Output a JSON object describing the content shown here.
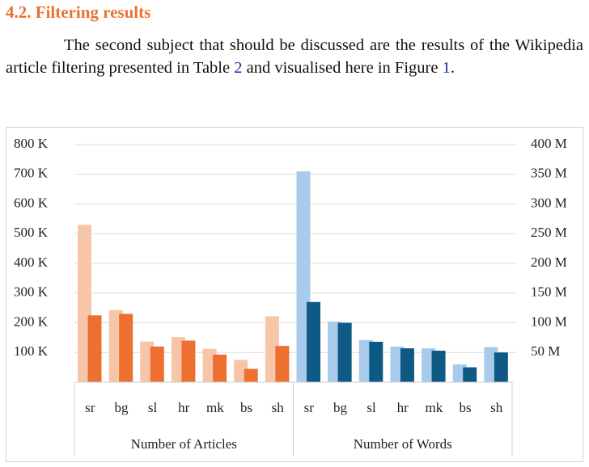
{
  "heading": "4.2. Filtering results",
  "paragraph": [
    "The second subject that should be discussed are the results of the Wikipedia article filtering presented in Table ",
    "2",
    " and visualised here in Figure ",
    "1",
    "."
  ],
  "chart_data": {
    "type": "bar",
    "ylim": [
      0,
      800000
    ],
    "yticks": [
      {
        "value": 100000,
        "label": "100 K"
      },
      {
        "value": 200000,
        "label": "200 K"
      },
      {
        "value": 300000,
        "label": "300 K"
      },
      {
        "value": 400000,
        "label": "400 K"
      },
      {
        "value": 500000,
        "label": "500 K"
      },
      {
        "value": 600000,
        "label": "600 K"
      },
      {
        "value": 700000,
        "label": "700 K"
      },
      {
        "value": 800000,
        "label": "800 K"
      }
    ],
    "y2lim": [
      0,
      400000000
    ],
    "y2ticks": [
      {
        "value": 50000000,
        "label": "50 M"
      },
      {
        "value": 100000000,
        "label": "100 M"
      },
      {
        "value": 150000000,
        "label": "150 M"
      },
      {
        "value": 200000000,
        "label": "200 M"
      },
      {
        "value": 250000000,
        "label": "250 M"
      },
      {
        "value": 300000000,
        "label": "300 M"
      },
      {
        "value": 350000000,
        "label": "350 M"
      },
      {
        "value": 400000000,
        "label": "400 M"
      }
    ],
    "grid": true,
    "groups": [
      {
        "label": "Number of Articles",
        "axis": "y",
        "categories": [
          "sr",
          "bg",
          "sl",
          "hr",
          "mk",
          "bs",
          "sh"
        ],
        "series": [
          {
            "color": "#f7c6a9",
            "values": [
              530000,
              243000,
              137000,
              152000,
              112000,
              75000,
              222000
            ]
          },
          {
            "color": "#ed7031",
            "values": [
              225000,
              230000,
              120000,
              140000,
              93000,
              45000,
              122000
            ]
          }
        ]
      },
      {
        "label": "Number of Words",
        "axis": "y2",
        "categories": [
          "sr",
          "bg",
          "sl",
          "hr",
          "mk",
          "bs",
          "sh"
        ],
        "series": [
          {
            "color": "#a9cbeb",
            "values": [
              355000000,
              102000000,
              71000000,
              60000000,
              57000000,
              30000000,
              59000000
            ]
          },
          {
            "color": "#0e5a85",
            "values": [
              135000000,
              100000000,
              68000000,
              57000000,
              53000000,
              25000000,
              50000000
            ]
          }
        ]
      }
    ]
  }
}
